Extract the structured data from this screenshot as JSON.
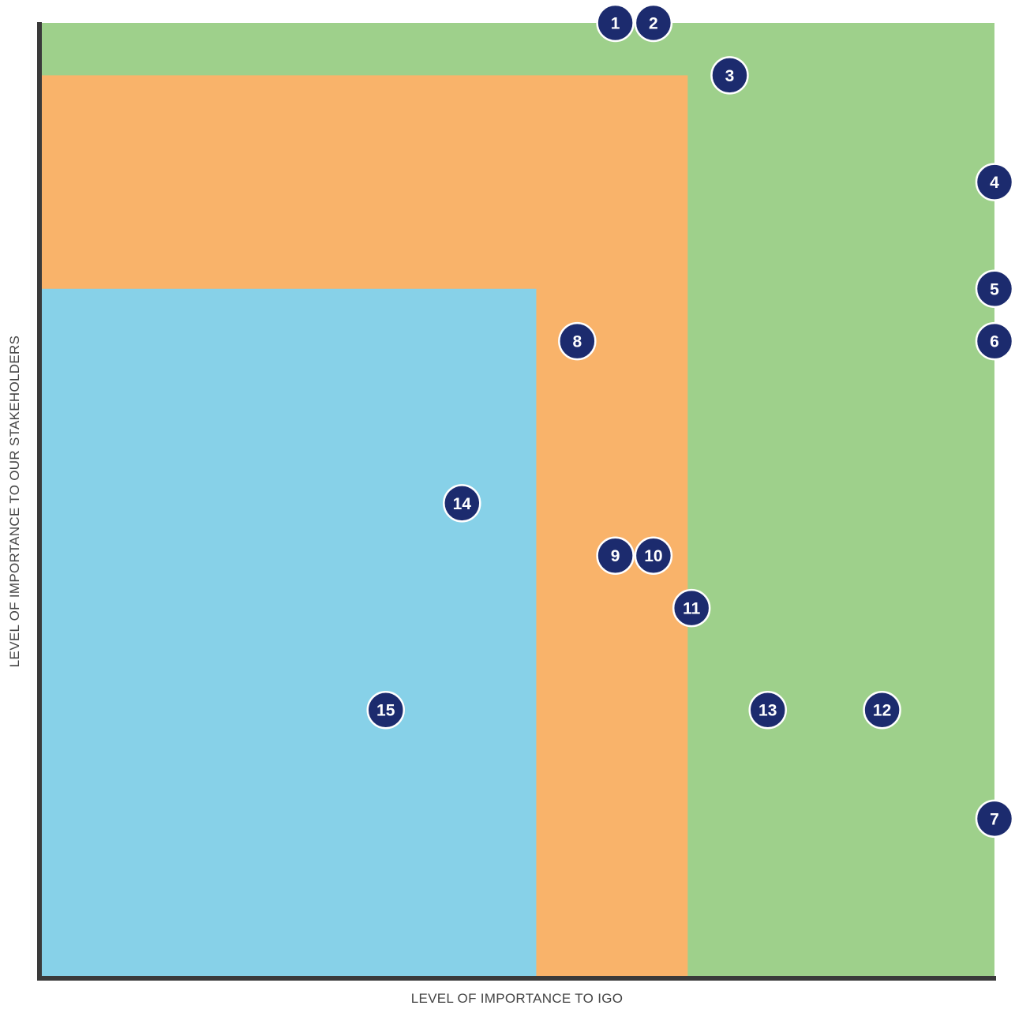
{
  "chart_data": {
    "type": "scatter",
    "title": "",
    "xlabel": "LEVEL OF IMPORTANCE TO IGO",
    "ylabel": "LEVEL OF IMPORTANCE TO OUR STAKEHOLDERS",
    "xlim": [
      0,
      100
    ],
    "ylim": [
      0,
      100
    ],
    "grid": false,
    "legend": "none",
    "zones": [
      {
        "color": "#9ed08b",
        "x": [
          0,
          100
        ],
        "y": [
          0,
          100
        ]
      },
      {
        "color": "#f9b36a",
        "x": [
          0,
          67.8
        ],
        "y": [
          0,
          94.5
        ]
      },
      {
        "color": "#87d1e8",
        "x": [
          0,
          51.9
        ],
        "y": [
          0,
          72.1
        ]
      }
    ],
    "points": [
      {
        "label": "1",
        "x": 60.2,
        "y": 100
      },
      {
        "label": "2",
        "x": 64.2,
        "y": 100
      },
      {
        "label": "3",
        "x": 72.2,
        "y": 94.5
      },
      {
        "label": "4",
        "x": 100,
        "y": 83.3
      },
      {
        "label": "5",
        "x": 100,
        "y": 72.1
      },
      {
        "label": "6",
        "x": 100,
        "y": 66.6
      },
      {
        "label": "7",
        "x": 100,
        "y": 16.5
      },
      {
        "label": "8",
        "x": 56.2,
        "y": 66.6
      },
      {
        "label": "9",
        "x": 60.2,
        "y": 44.1
      },
      {
        "label": "10",
        "x": 64.2,
        "y": 44.1
      },
      {
        "label": "11",
        "x": 68.2,
        "y": 38.6
      },
      {
        "label": "12",
        "x": 88.2,
        "y": 27.9
      },
      {
        "label": "13",
        "x": 76.2,
        "y": 27.9
      },
      {
        "label": "14",
        "x": 44.1,
        "y": 49.6
      },
      {
        "label": "15",
        "x": 36.1,
        "y": 27.9
      }
    ]
  },
  "colors": {
    "marker_fill": "#1c2b6e",
    "marker_stroke": "#ffffff",
    "marker_text": "#ffffff",
    "axis": "#3a3a3a",
    "axis_title": "#444444"
  }
}
